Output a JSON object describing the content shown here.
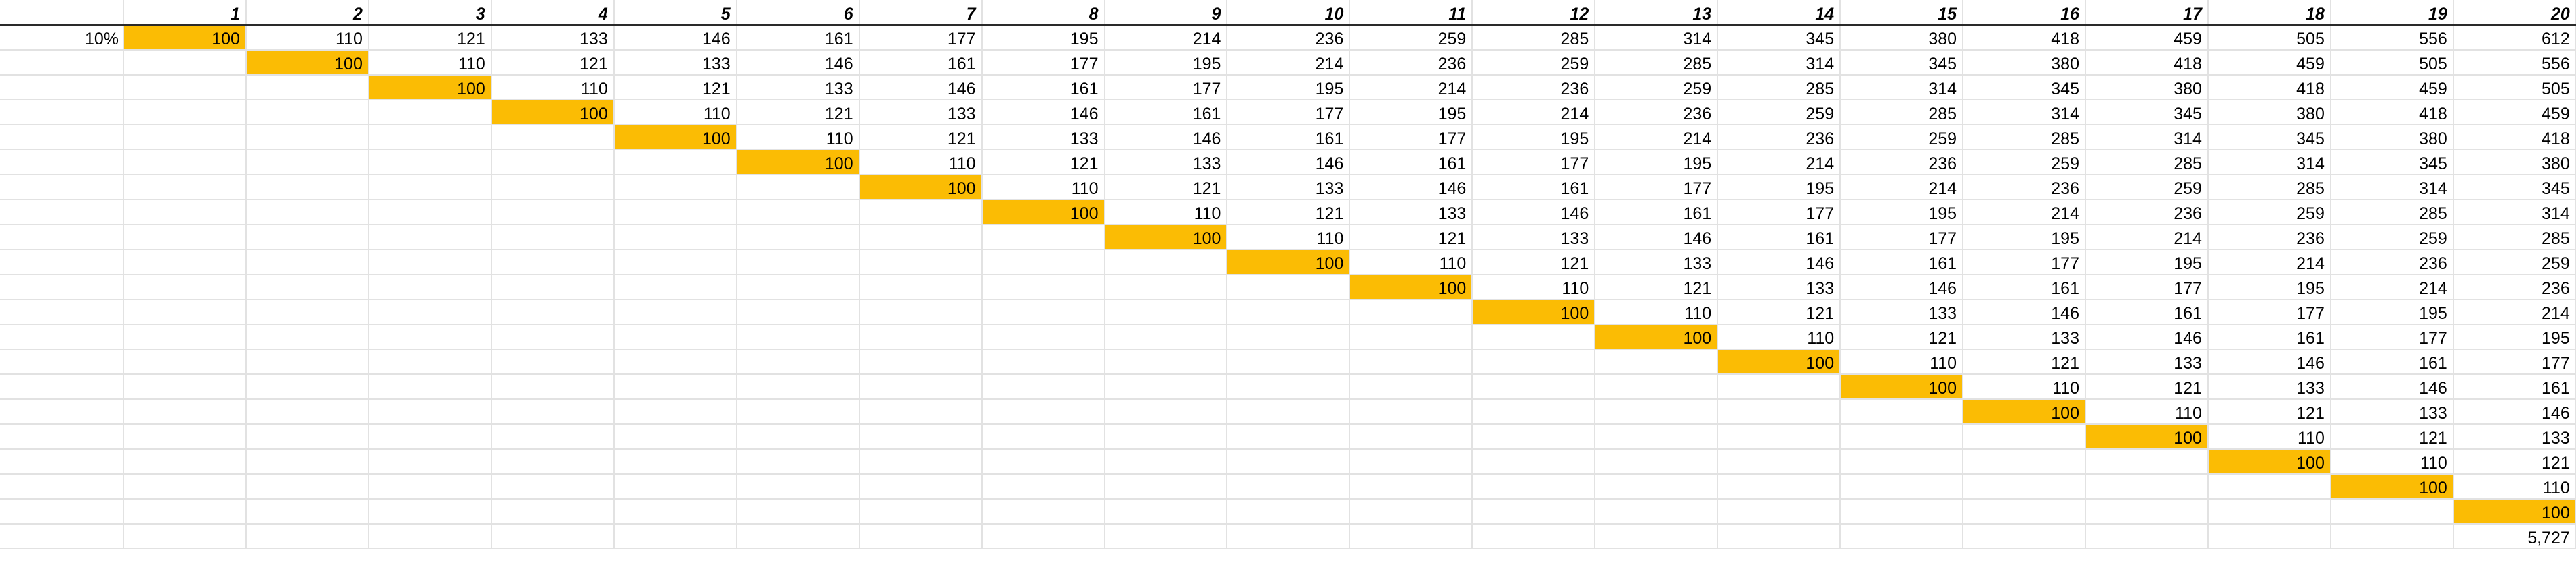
{
  "sheet": {
    "rate_label": "10%",
    "header_italic": true,
    "highlight_color": "#fbbc04",
    "columns": [
      "1",
      "2",
      "3",
      "4",
      "5",
      "6",
      "7",
      "8",
      "9",
      "10",
      "11",
      "12",
      "13",
      "14",
      "15",
      "16",
      "17",
      "18",
      "19",
      "20"
    ],
    "rows": [
      [
        "100",
        "110",
        "121",
        "133",
        "146",
        "161",
        "177",
        "195",
        "214",
        "236",
        "259",
        "285",
        "314",
        "345",
        "380",
        "418",
        "459",
        "505",
        "556",
        "612"
      ],
      [
        "",
        "100",
        "110",
        "121",
        "133",
        "146",
        "161",
        "177",
        "195",
        "214",
        "236",
        "259",
        "285",
        "314",
        "345",
        "380",
        "418",
        "459",
        "505",
        "556"
      ],
      [
        "",
        "",
        "100",
        "110",
        "121",
        "133",
        "146",
        "161",
        "177",
        "195",
        "214",
        "236",
        "259",
        "285",
        "314",
        "345",
        "380",
        "418",
        "459",
        "505"
      ],
      [
        "",
        "",
        "",
        "100",
        "110",
        "121",
        "133",
        "146",
        "161",
        "177",
        "195",
        "214",
        "236",
        "259",
        "285",
        "314",
        "345",
        "380",
        "418",
        "459"
      ],
      [
        "",
        "",
        "",
        "",
        "100",
        "110",
        "121",
        "133",
        "146",
        "161",
        "177",
        "195",
        "214",
        "236",
        "259",
        "285",
        "314",
        "345",
        "380",
        "418"
      ],
      [
        "",
        "",
        "",
        "",
        "",
        "100",
        "110",
        "121",
        "133",
        "146",
        "161",
        "177",
        "195",
        "214",
        "236",
        "259",
        "285",
        "314",
        "345",
        "380"
      ],
      [
        "",
        "",
        "",
        "",
        "",
        "",
        "100",
        "110",
        "121",
        "133",
        "146",
        "161",
        "177",
        "195",
        "214",
        "236",
        "259",
        "285",
        "314",
        "345"
      ],
      [
        "",
        "",
        "",
        "",
        "",
        "",
        "",
        "100",
        "110",
        "121",
        "133",
        "146",
        "161",
        "177",
        "195",
        "214",
        "236",
        "259",
        "285",
        "314"
      ],
      [
        "",
        "",
        "",
        "",
        "",
        "",
        "",
        "",
        "100",
        "110",
        "121",
        "133",
        "146",
        "161",
        "177",
        "195",
        "214",
        "236",
        "259",
        "285"
      ],
      [
        "",
        "",
        "",
        "",
        "",
        "",
        "",
        "",
        "",
        "100",
        "110",
        "121",
        "133",
        "146",
        "161",
        "177",
        "195",
        "214",
        "236",
        "259"
      ],
      [
        "",
        "",
        "",
        "",
        "",
        "",
        "",
        "",
        "",
        "",
        "100",
        "110",
        "121",
        "133",
        "146",
        "161",
        "177",
        "195",
        "214",
        "236"
      ],
      [
        "",
        "",
        "",
        "",
        "",
        "",
        "",
        "",
        "",
        "",
        "",
        "100",
        "110",
        "121",
        "133",
        "146",
        "161",
        "177",
        "195",
        "214"
      ],
      [
        "",
        "",
        "",
        "",
        "",
        "",
        "",
        "",
        "",
        "",
        "",
        "",
        "100",
        "110",
        "121",
        "133",
        "146",
        "161",
        "177",
        "195"
      ],
      [
        "",
        "",
        "",
        "",
        "",
        "",
        "",
        "",
        "",
        "",
        "",
        "",
        "",
        "100",
        "110",
        "121",
        "133",
        "146",
        "161",
        "177"
      ],
      [
        "",
        "",
        "",
        "",
        "",
        "",
        "",
        "",
        "",
        "",
        "",
        "",
        "",
        "",
        "100",
        "110",
        "121",
        "133",
        "146",
        "161"
      ],
      [
        "",
        "",
        "",
        "",
        "",
        "",
        "",
        "",
        "",
        "",
        "",
        "",
        "",
        "",
        "",
        "100",
        "110",
        "121",
        "133",
        "146"
      ],
      [
        "",
        "",
        "",
        "",
        "",
        "",
        "",
        "",
        "",
        "",
        "",
        "",
        "",
        "",
        "",
        "",
        "100",
        "110",
        "121",
        "133"
      ],
      [
        "",
        "",
        "",
        "",
        "",
        "",
        "",
        "",
        "",
        "",
        "",
        "",
        "",
        "",
        "",
        "",
        "",
        "100",
        "110",
        "121"
      ],
      [
        "",
        "",
        "",
        "",
        "",
        "",
        "",
        "",
        "",
        "",
        "",
        "",
        "",
        "",
        "",
        "",
        "",
        "",
        "100",
        "110"
      ],
      [
        "",
        "",
        "",
        "",
        "",
        "",
        "",
        "",
        "",
        "",
        "",
        "",
        "",
        "",
        "",
        "",
        "",
        "",
        "",
        "100"
      ]
    ],
    "total": "5,727"
  }
}
